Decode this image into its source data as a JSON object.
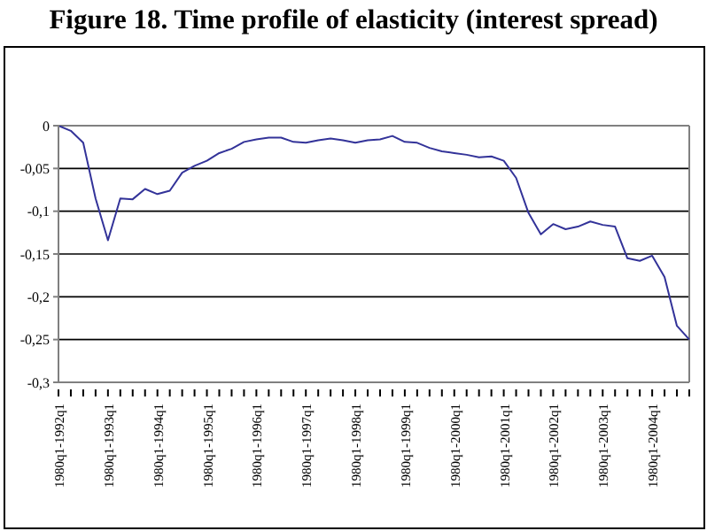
{
  "chart_data": {
    "type": "line",
    "title": "Figure 18. Time profile of elasticity (interest spread)",
    "categories": [
      "1980q1-1992q1",
      null,
      null,
      null,
      "1980q1-1993q1",
      null,
      null,
      null,
      "1980q1-1994q1",
      null,
      null,
      null,
      "1980q1-1995q1",
      null,
      null,
      null,
      "1980q1-1996q1",
      null,
      null,
      null,
      "1980q1-1997q1",
      null,
      null,
      null,
      "1980q1-1998q1",
      null,
      null,
      null,
      "1980q1-1999q1",
      null,
      null,
      null,
      "1980q1-2000q1",
      null,
      null,
      null,
      "1980q1-2001q1",
      null,
      null,
      null,
      "1980q1-2002q1",
      null,
      null,
      null,
      "1980q1-2003q1",
      null,
      null,
      null,
      "1980q1-2004q1",
      null,
      null,
      null
    ],
    "series": [
      {
        "color": "#333399",
        "values": [
          0,
          -0.006,
          -0.02,
          -0.085,
          -0.134,
          -0.085,
          -0.086,
          -0.074,
          -0.08,
          -0.076,
          -0.055,
          -0.047,
          -0.041,
          -0.032,
          -0.027,
          -0.019,
          -0.016,
          -0.014,
          -0.014,
          -0.019,
          -0.02,
          -0.017,
          -0.015,
          -0.017,
          -0.02,
          -0.017,
          -0.016,
          -0.012,
          -0.019,
          -0.02,
          -0.026,
          -0.03,
          -0.032,
          -0.034,
          -0.037,
          -0.036,
          -0.041,
          -0.061,
          -0.102,
          -0.127,
          -0.115,
          -0.121,
          -0.118,
          -0.112,
          -0.116,
          -0.118,
          -0.155,
          -0.158,
          -0.152,
          -0.177,
          -0.234,
          -0.25
        ]
      }
    ],
    "ylim": [
      -0.3,
      0
    ],
    "yticks": [
      {
        "value": -0.3,
        "label": "-0,3"
      },
      {
        "value": -0.25,
        "label": "-0,25"
      },
      {
        "value": -0.2,
        "label": "-0,2"
      },
      {
        "value": -0.15,
        "label": "-0,15"
      },
      {
        "value": -0.1,
        "label": "-0,1"
      },
      {
        "value": -0.05,
        "label": "-0,05"
      },
      {
        "value": 0,
        "label": "0"
      }
    ],
    "grid": "y",
    "legend": false,
    "marker": "none",
    "line_style": "solid"
  }
}
